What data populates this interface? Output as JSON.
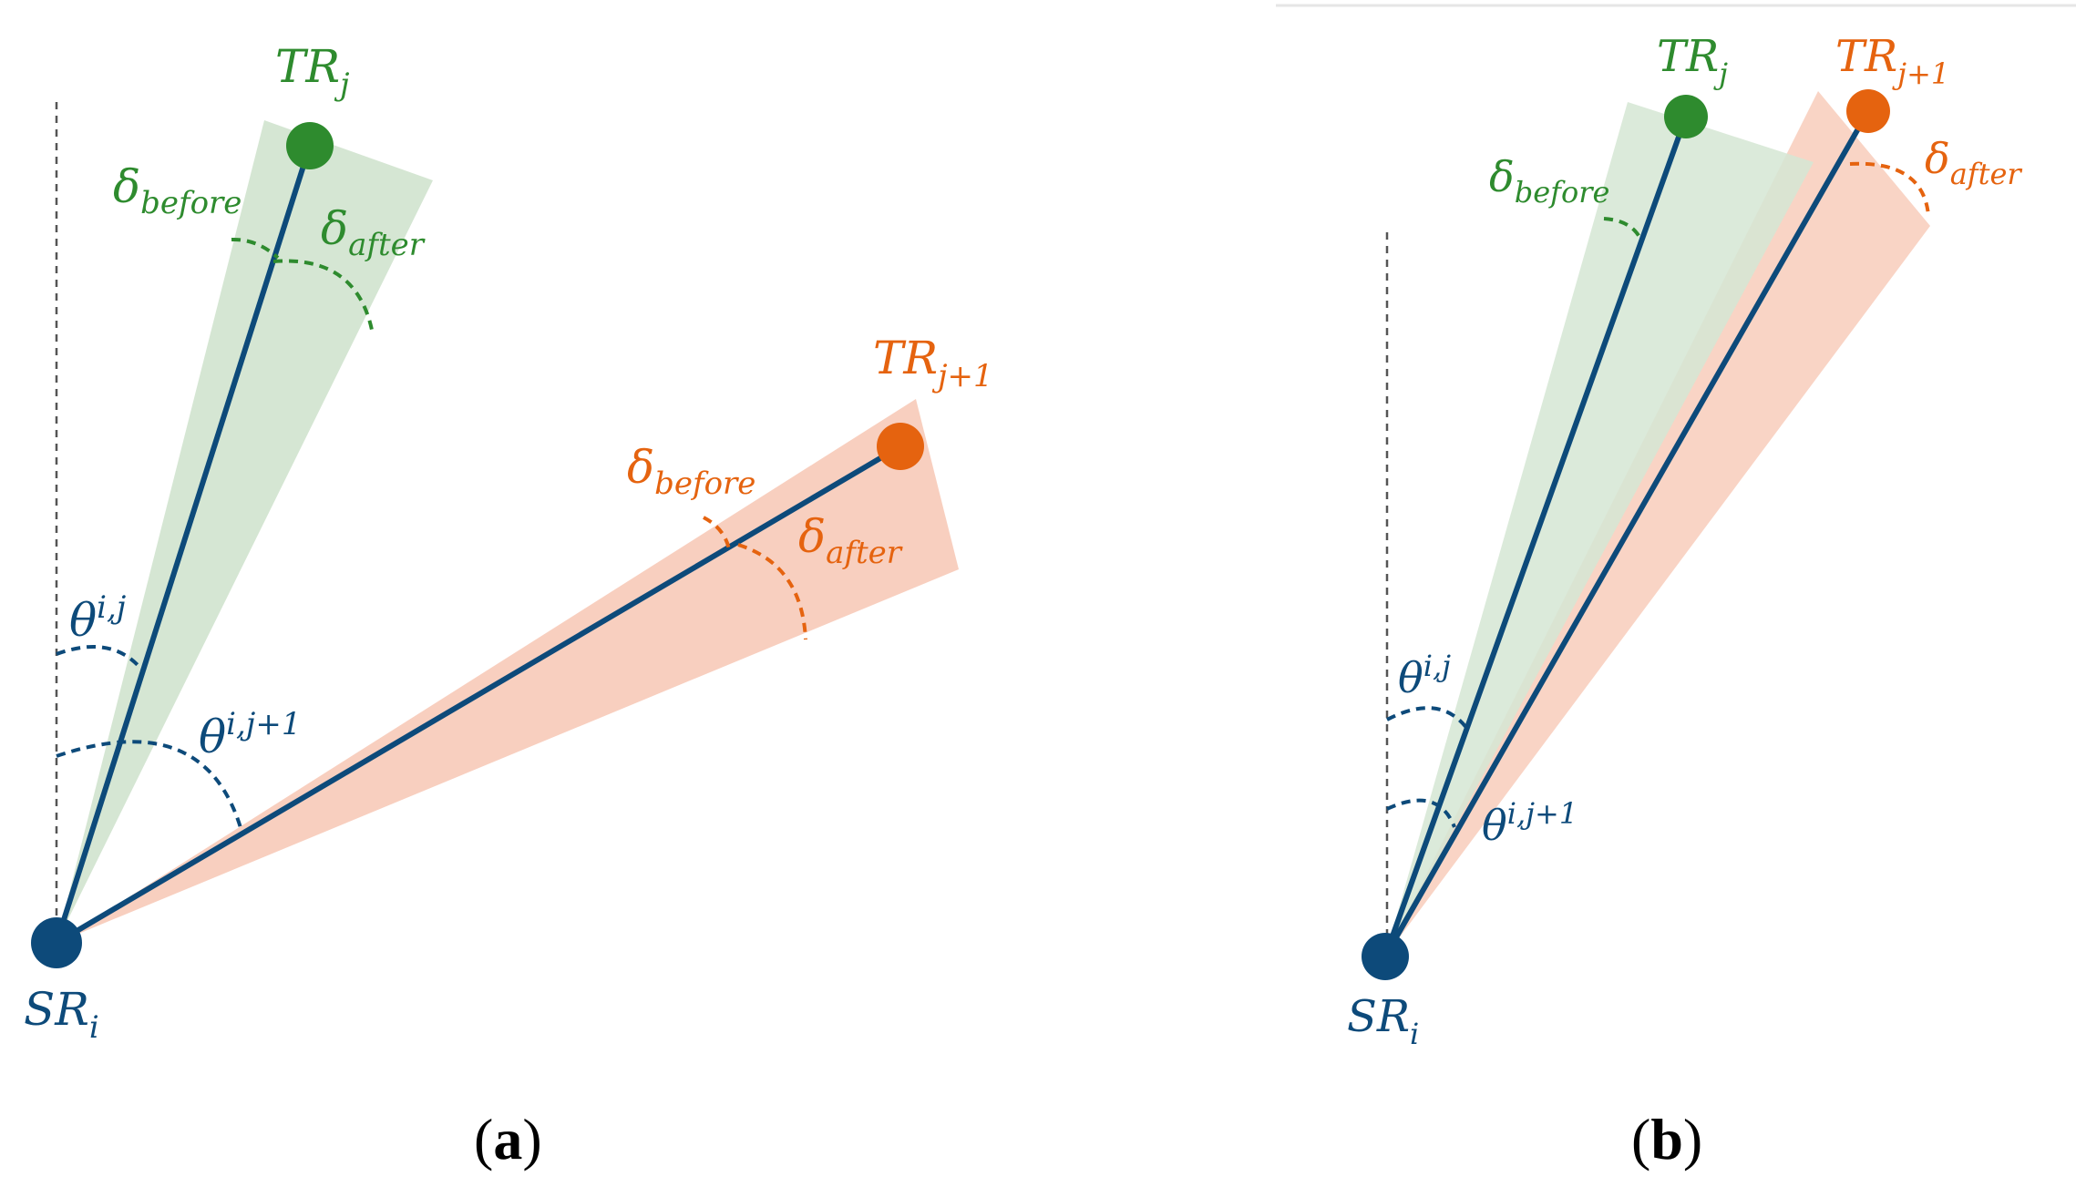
{
  "colors": {
    "blue": "#0d4a7a",
    "green": "#2e8b2e",
    "orange": "#e5630f",
    "green_fill": "#d5e6d3",
    "orange_fill": "#f8cfbf",
    "dash": "#555555"
  },
  "panel_a": {
    "caption": {
      "open": "(",
      "letter": "a",
      "close": ")"
    },
    "sr": {
      "main": "SR",
      "sub": "i"
    },
    "tr_j": {
      "main": "TR",
      "sub": "j"
    },
    "tr_j1": {
      "main": "TR",
      "sub": "j+1"
    },
    "delta_before_green": {
      "main": "δ",
      "sub": "before"
    },
    "delta_after_green": {
      "main": "δ",
      "sub": "after"
    },
    "delta_before_orange": {
      "main": "δ",
      "sub": "before"
    },
    "delta_after_orange": {
      "main": "δ",
      "sub": "after"
    },
    "theta_j": {
      "main": "θ",
      "sup": "i,j"
    },
    "theta_j1": {
      "main": "θ",
      "sup": "i,j+1"
    }
  },
  "panel_b": {
    "caption": {
      "open": "(",
      "letter": "b",
      "close": ")"
    },
    "sr": {
      "main": "SR",
      "sub": "i"
    },
    "tr_j": {
      "main": "TR",
      "sub": "j"
    },
    "tr_j1": {
      "main": "TR",
      "sub": "j+1"
    },
    "delta_before_green": {
      "main": "δ",
      "sub": "before"
    },
    "delta_after_orange": {
      "main": "δ",
      "sub": "after"
    },
    "theta_j": {
      "main": "θ",
      "sup": "i,j"
    },
    "theta_j1": {
      "main": "θ",
      "sup": "i,j+1"
    }
  }
}
